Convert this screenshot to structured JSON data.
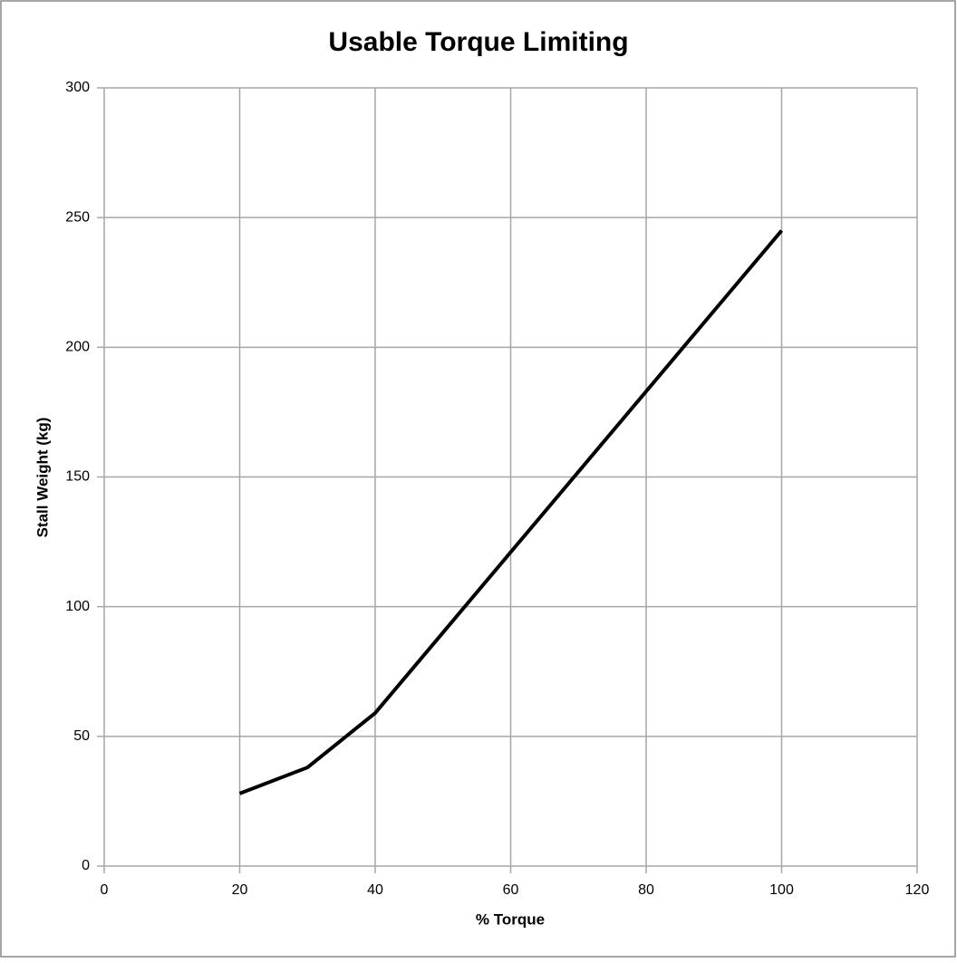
{
  "chart_data": {
    "type": "line",
    "title": "Usable Torque Limiting",
    "x_label": "% Torque",
    "y_label": "Stall Weight (kg)",
    "x": [
      20,
      30,
      40,
      100
    ],
    "series": [
      {
        "name": "Stall Weight",
        "color": "#000000",
        "values": [
          28,
          38,
          59,
          245
        ]
      }
    ],
    "xlim": [
      0,
      120
    ],
    "xticks": [
      0,
      20,
      40,
      60,
      80,
      100,
      120
    ],
    "ylim": [
      0,
      300
    ],
    "yticks": [
      0,
      50,
      100,
      150,
      200,
      250,
      300
    ],
    "grid": true,
    "legend": false
  }
}
